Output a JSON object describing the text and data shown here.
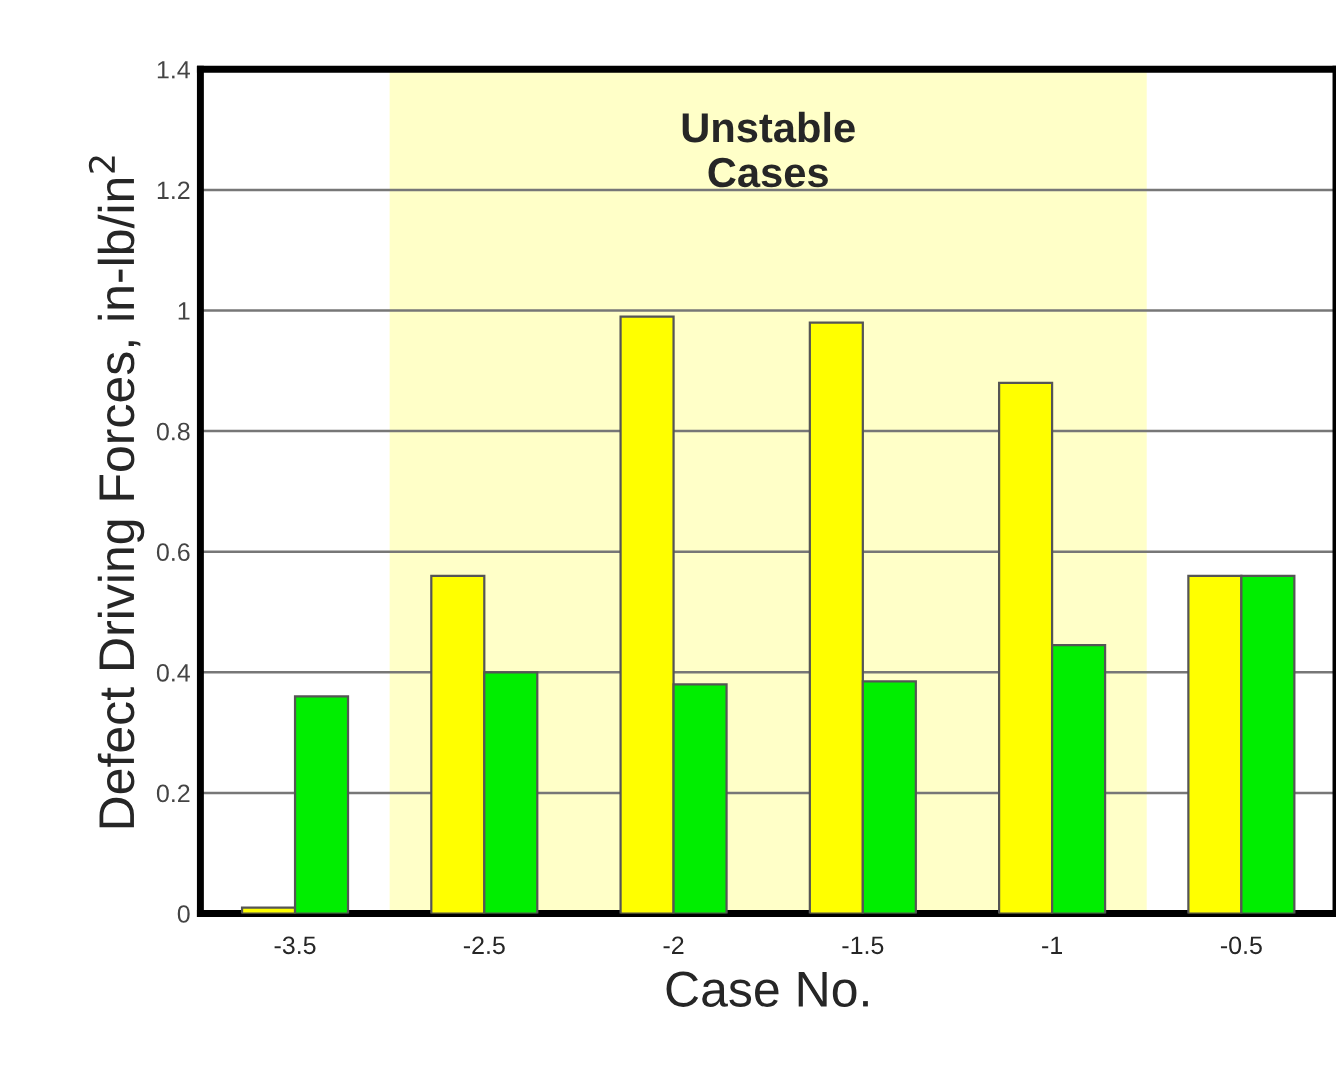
{
  "chart_data": {
    "type": "bar",
    "xlabel": "Case No.",
    "ylabel": "Defect Driving Forces, in-lb/in$^{2}$",
    "categories": [
      "-3.5",
      "-2.5",
      "-2",
      "-1.5",
      "-1",
      "-0.5"
    ],
    "series": [
      {
        "color": "#ffff00",
        "values": [
          0.01,
          0.56,
          0.99,
          0.98,
          0.88,
          0.56
        ]
      },
      {
        "color": "#00ee00",
        "values": [
          0.36,
          0.4,
          0.38,
          0.385,
          0.445,
          0.56
        ]
      }
    ],
    "ylim": [
      0,
      1.4
    ],
    "yticks": [
      0,
      0.2,
      0.4,
      0.6,
      0.8,
      1,
      1.2,
      1.4
    ],
    "grid": "y",
    "bands": [
      {
        "axis": "x",
        "from": "-2.5",
        "to": "-1",
        "label": "Unstable\nCases",
        "color": "#ffffc8"
      }
    ]
  }
}
